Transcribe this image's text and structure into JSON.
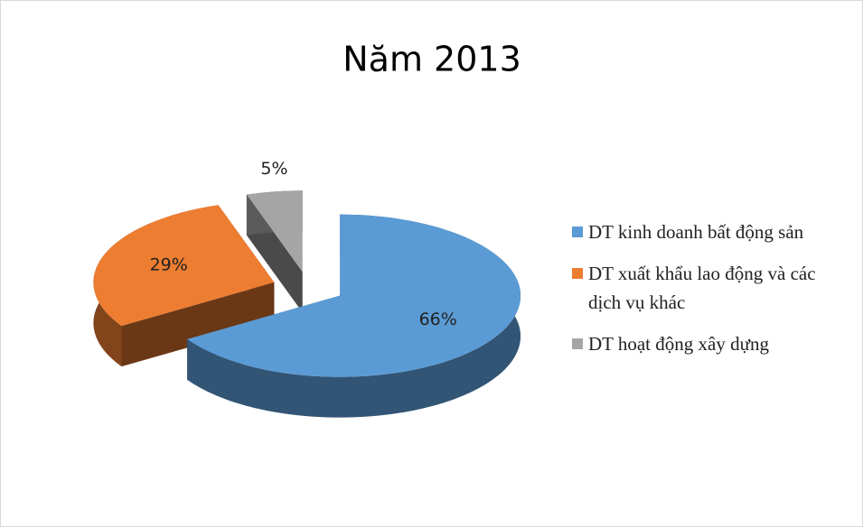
{
  "chart_data": {
    "type": "pie3d",
    "title": "Năm 2013",
    "categories": [
      "DT kinh doanh bất động sản",
      "DT xuất khẩu lao động và các dịch vụ khác",
      "DT hoạt động xây dựng"
    ],
    "values": [
      66,
      29,
      5
    ],
    "value_labels": [
      "66%",
      "29%",
      "5%"
    ],
    "colors": [
      "#5b9bd5",
      "#ed7d31",
      "#a5a5a5"
    ],
    "legend": "right"
  }
}
